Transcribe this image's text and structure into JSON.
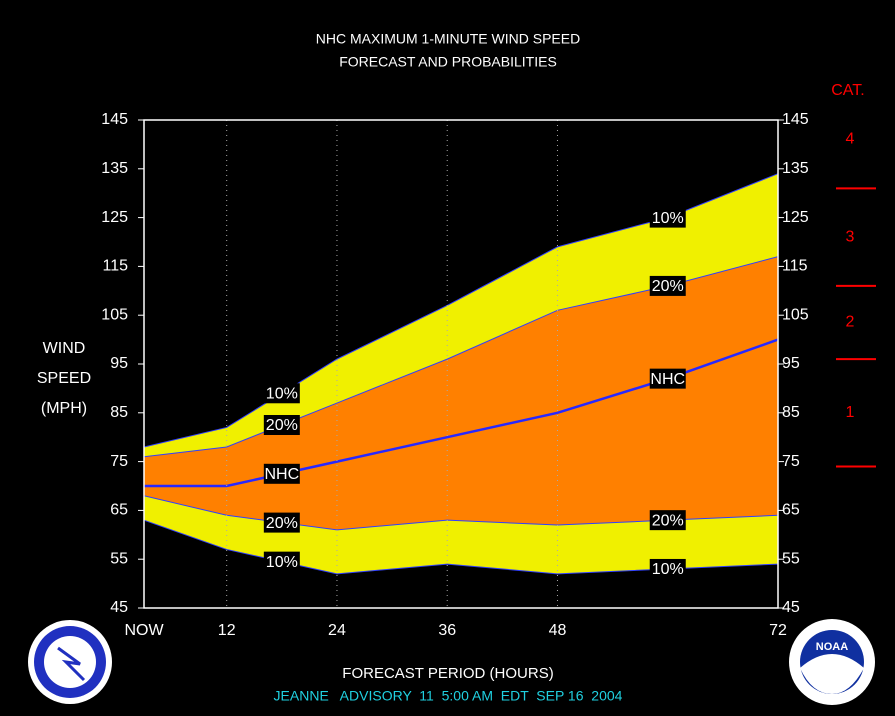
{
  "chart_data": {
    "type": "probability-band",
    "title": [
      "NHC MAXIMUM 1-MINUTE WIND SPEED",
      "FORECAST AND PROBABILITIES"
    ],
    "ylabel": [
      "WIND",
      "SPEED",
      "(MPH)"
    ],
    "xlabel": "FORECAST PERIOD (HOURS)",
    "footer": "JEANNE   ADVISORY  11  5:00 AM  EDT  SEP 16  2004",
    "x": [
      3,
      12,
      24,
      36,
      48,
      60,
      72
    ],
    "xlim": [
      3,
      72
    ],
    "xticks": [
      {
        "value": 3,
        "label": "NOW"
      },
      12,
      24,
      36,
      48,
      72
    ],
    "ylim": [
      45,
      145
    ],
    "yticks": [
      45,
      55,
      65,
      75,
      85,
      95,
      105,
      115,
      125,
      135,
      145
    ],
    "grid": true,
    "series": [
      {
        "name": "10%",
        "color": "#f0f000",
        "values": [
          78,
          82,
          96,
          107,
          119,
          125,
          134
        ]
      },
      {
        "name": "20%",
        "color": "#ff8000",
        "values": [
          76,
          78,
          87,
          96,
          106,
          111,
          117
        ]
      },
      {
        "name": "NHC",
        "color": "#2828ff",
        "values": [
          70,
          70,
          75,
          80,
          85,
          92,
          100
        ]
      },
      {
        "name": "20%",
        "color": "#f0f000",
        "values": [
          68,
          64,
          61,
          63,
          62,
          63,
          64
        ]
      },
      {
        "name": "10%",
        "color": "#000000",
        "values": [
          63,
          57,
          52,
          54,
          52,
          53,
          54
        ]
      }
    ],
    "category_scale": {
      "title": "CAT.",
      "thresholds": [
        74,
        96,
        111,
        131
      ],
      "labels": [
        "1",
        "2",
        "3",
        "4"
      ],
      "color": "#ff0000"
    }
  },
  "logos": [
    "NOAA"
  ]
}
